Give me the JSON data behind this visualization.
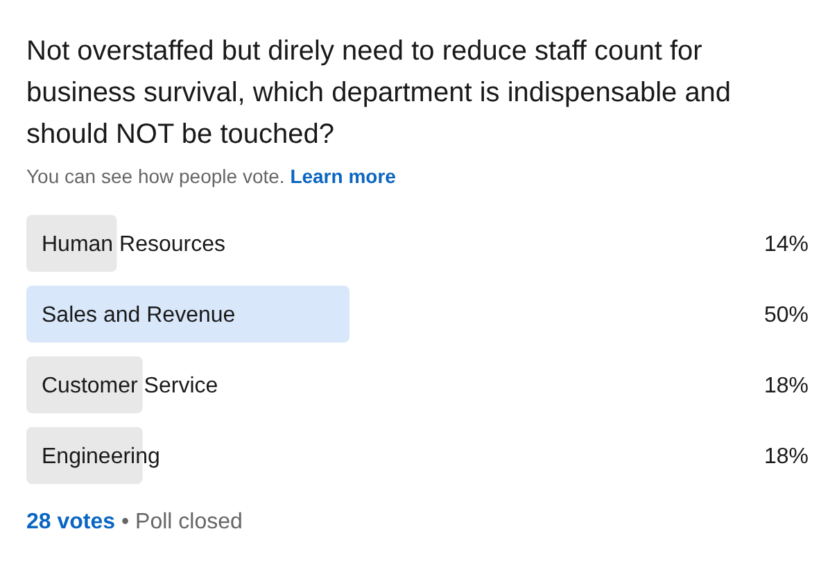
{
  "chart_data": {
    "type": "bar",
    "orientation": "horizontal",
    "title": "Not overstaffed but direly need to reduce staff count for business survival, which department is indispensable and should NOT be touched?",
    "subtitle": "You can see how people vote.",
    "annotations": [
      "Learn more",
      "28 votes",
      "• Poll closed"
    ],
    "categories": [
      "Human Resources",
      "Sales and Revenue",
      "Customer Service",
      "Engineering"
    ],
    "values": [
      14,
      50,
      18,
      18
    ],
    "colors": [
      "#e8e8e8",
      "#d8e7f9",
      "#e8e8e8",
      "#e8e8e8"
    ],
    "value_labels": [
      "14%",
      "50%",
      "18%",
      "18%"
    ],
    "tick_labels": "y"
  }
}
